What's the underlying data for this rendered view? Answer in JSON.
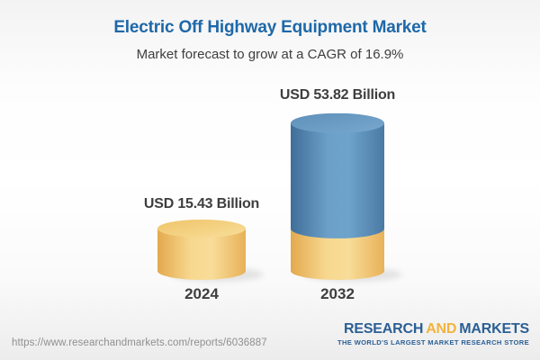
{
  "chart_data": {
    "type": "bar",
    "bar_style": "3d-cylinder",
    "title": "Electric Off Highway Equipment Market",
    "subtitle": "Market forecast to grow at a CAGR of 16.9%",
    "categories": [
      "2024",
      "2032"
    ],
    "values": [
      15.43,
      53.82
    ],
    "value_labels": [
      "USD 15.43 Billion",
      "USD 53.82 Billion"
    ],
    "unit": "USD Billion",
    "cagr_percent": 16.9,
    "xlabel": "",
    "ylabel": "",
    "legend": "none",
    "grid": false,
    "axes_hidden": true,
    "colors": {
      "base_segment_yellow": "#F5D283",
      "growth_segment_blue": "#5B8FBA"
    }
  },
  "footer": {
    "url": "https://www.researchandmarkets.com/reports/6036887",
    "logo_text_research": "RESEARCH",
    "logo_text_and": "AND",
    "logo_text_markets": "MARKETS",
    "logo_tagline": "THE WORLD'S LARGEST MARKET RESEARCH STORE"
  },
  "colors": {
    "title_blue": "#1E68A8",
    "text_dark": "#3E3E3E",
    "url_gray": "#8F8F8F",
    "logo_blue": "#2A5F94",
    "logo_gold": "#F3B33C"
  }
}
